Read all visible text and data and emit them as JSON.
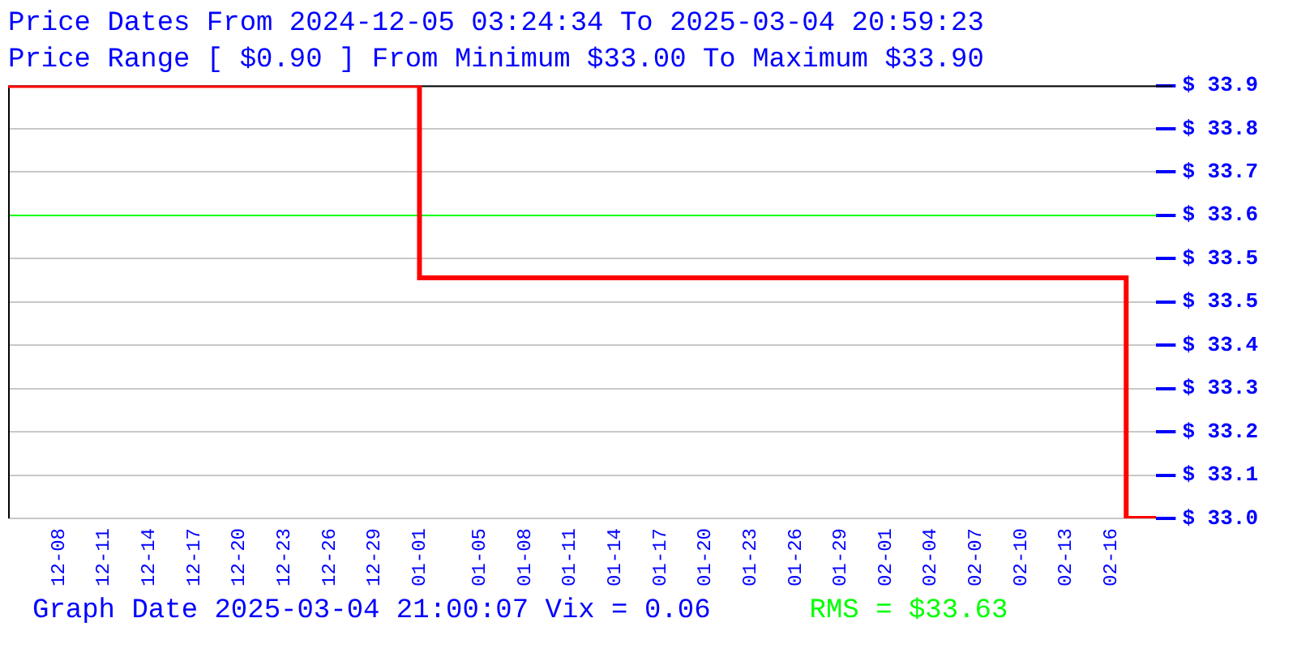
{
  "chart_data": {
    "type": "step",
    "title": "Price Dates From 2024-12-05 03:24:34 To 2025-03-04 20:59:23",
    "subtitle": "Price Range [ $0.90 ] From Minimum $33.00 To Maximum $33.90",
    "x": [
      "2024-12-05T03:24",
      "2025-01-01T12:00",
      "2025-02-17T12:00",
      "2025-02-19T12:00"
    ],
    "series": [
      {
        "color": "#ff0000",
        "values": [
          33.9,
          33.5,
          33.0,
          33.0
        ]
      }
    ],
    "xlim": [
      "2024-12-05T03:24",
      "2025-02-19T12:00"
    ],
    "xticks": [
      {
        "value": "2024-12-08T12:00",
        "label": "12-08"
      },
      {
        "value": "2024-12-11T12:00",
        "label": "12-11"
      },
      {
        "value": "2024-12-14T12:00",
        "label": "12-14"
      },
      {
        "value": "2024-12-17T12:00",
        "label": "12-17"
      },
      {
        "value": "2024-12-20T12:00",
        "label": "12-20"
      },
      {
        "value": "2024-12-23T12:00",
        "label": "12-23"
      },
      {
        "value": "2024-12-26T12:00",
        "label": "12-26"
      },
      {
        "value": "2024-12-29T12:00",
        "label": "12-29"
      },
      {
        "value": "2025-01-01T12:00",
        "label": "01-01"
      },
      {
        "value": "2025-01-05T12:00",
        "label": "01-05"
      },
      {
        "value": "2025-01-08T12:00",
        "label": "01-08"
      },
      {
        "value": "2025-01-11T12:00",
        "label": "01-11"
      },
      {
        "value": "2025-01-14T12:00",
        "label": "01-14"
      },
      {
        "value": "2025-01-17T12:00",
        "label": "01-17"
      },
      {
        "value": "2025-01-20T12:00",
        "label": "01-20"
      },
      {
        "value": "2025-01-23T12:00",
        "label": "01-23"
      },
      {
        "value": "2025-01-26T12:00",
        "label": "01-26"
      },
      {
        "value": "2025-01-29T12:00",
        "label": "01-29"
      },
      {
        "value": "2025-02-01T12:00",
        "label": "02-01"
      },
      {
        "value": "2025-02-04T12:00",
        "label": "02-04"
      },
      {
        "value": "2025-02-07T12:00",
        "label": "02-07"
      },
      {
        "value": "2025-02-10T12:00",
        "label": "02-10"
      },
      {
        "value": "2025-02-13T12:00",
        "label": "02-13"
      },
      {
        "value": "2025-02-16T12:00",
        "label": "02-16"
      }
    ],
    "ylim": [
      33.0,
      33.9
    ],
    "yticks": [
      {
        "value": 33.0,
        "label": "$ 33.0"
      },
      {
        "value": 33.09,
        "label": "$ 33.1"
      },
      {
        "value": 33.18,
        "label": "$ 33.2"
      },
      {
        "value": 33.27,
        "label": "$ 33.3"
      },
      {
        "value": 33.36,
        "label": "$ 33.4"
      },
      {
        "value": 33.45,
        "label": "$ 33.5"
      },
      {
        "value": 33.54,
        "label": "$ 33.5"
      },
      {
        "value": 33.63,
        "label": "$ 33.6"
      },
      {
        "value": 33.72,
        "label": "$ 33.7"
      },
      {
        "value": 33.81,
        "label": "$ 33.8"
      },
      {
        "value": 33.9,
        "label": "$ 33.9"
      }
    ],
    "grid": "y",
    "ref_lines": [
      {
        "axis": "y",
        "value": 33.63,
        "label": "RMS = $33.63",
        "color": "#00ff00"
      }
    ],
    "annotations": [
      "Graph Date 2025-03-04 21:00:07 Vix = 0.06"
    ]
  }
}
